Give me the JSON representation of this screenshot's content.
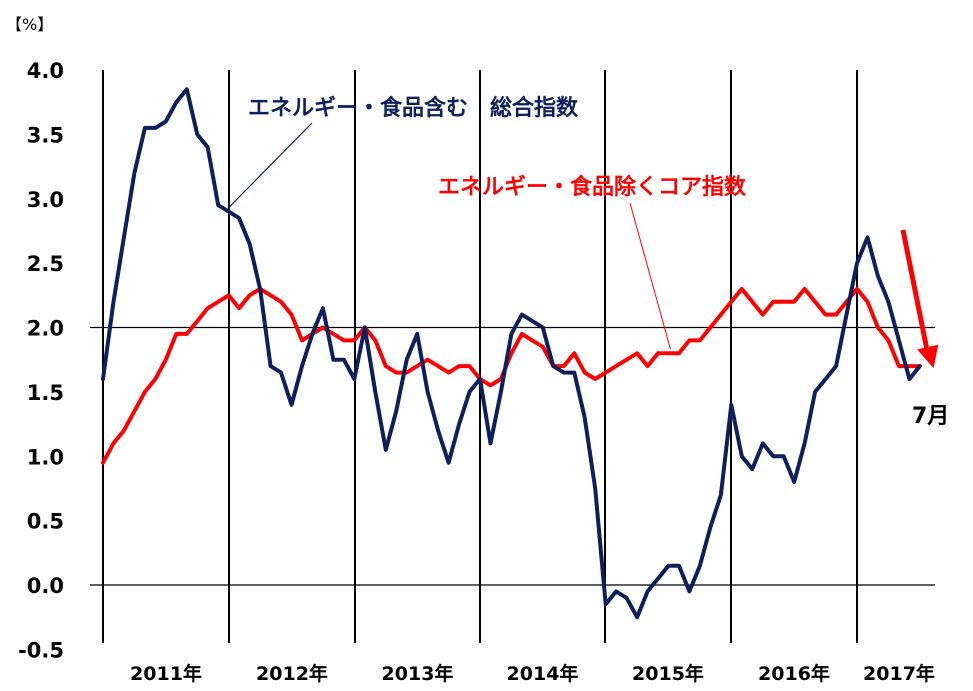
{
  "chart_data": {
    "type": "line",
    "unit_label": "【%】",
    "ylim": [
      -0.5,
      4.0
    ],
    "yticks": [
      "4.0",
      "3.5",
      "3.0",
      "2.5",
      "2.0",
      "1.5",
      "1.0",
      "0.5",
      "0.0",
      "-0.5"
    ],
    "year_labels": [
      "2011年",
      "2012年",
      "2013年",
      "2014年",
      "2015年",
      "2016年",
      "2017年"
    ],
    "grid": "vertical year separators, horizontal reference lines at 0 and 2",
    "series": [
      {
        "name": "エネルギー・食品含む　総合指数",
        "color": "#0d1f5c",
        "start": "2011-01",
        "values": [
          1.6,
          2.2,
          2.7,
          3.2,
          3.55,
          3.55,
          3.6,
          3.75,
          3.85,
          3.5,
          3.4,
          2.95,
          2.9,
          2.85,
          2.65,
          2.3,
          1.7,
          1.65,
          1.4,
          1.7,
          1.95,
          2.15,
          1.75,
          1.75,
          1.6,
          2.0,
          1.5,
          1.05,
          1.35,
          1.75,
          1.95,
          1.5,
          1.2,
          0.95,
          1.25,
          1.5,
          1.6,
          1.1,
          1.5,
          1.95,
          2.1,
          2.05,
          2.0,
          1.7,
          1.65,
          1.65,
          1.3,
          0.75,
          -0.15,
          -0.05,
          -0.1,
          -0.25,
          -0.05,
          0.05,
          0.15,
          0.15,
          -0.05,
          0.15,
          0.45,
          0.7,
          1.4,
          1.0,
          0.9,
          1.1,
          1.0,
          1.0,
          0.8,
          1.1,
          1.5,
          1.6,
          1.7,
          2.1,
          2.5,
          2.7,
          2.4,
          2.2,
          1.9,
          1.6,
          1.7
        ]
      },
      {
        "name": "エネルギー・食品除くコア指数",
        "color": "#ff0000",
        "start": "2011-01",
        "values": [
          0.95,
          1.1,
          1.2,
          1.35,
          1.5,
          1.6,
          1.75,
          1.95,
          1.95,
          2.05,
          2.15,
          2.2,
          2.25,
          2.15,
          2.25,
          2.3,
          2.25,
          2.2,
          2.1,
          1.9,
          1.95,
          2.0,
          1.95,
          1.9,
          1.9,
          2.0,
          1.9,
          1.7,
          1.65,
          1.65,
          1.7,
          1.75,
          1.7,
          1.65,
          1.7,
          1.7,
          1.6,
          1.55,
          1.6,
          1.8,
          1.95,
          1.9,
          1.85,
          1.7,
          1.7,
          1.8,
          1.65,
          1.6,
          1.65,
          1.7,
          1.75,
          1.8,
          1.7,
          1.8,
          1.8,
          1.8,
          1.9,
          1.9,
          2.0,
          2.1,
          2.2,
          2.3,
          2.2,
          2.1,
          2.2,
          2.2,
          2.2,
          2.3,
          2.2,
          2.1,
          2.1,
          2.2,
          2.3,
          2.2,
          2.0,
          1.9,
          1.7,
          1.7,
          1.7
        ]
      }
    ],
    "annotations": [
      {
        "text": "エネルギー・食品含む　総合指数",
        "color": "#0d1f5c",
        "series": 0
      },
      {
        "text": "エネルギー・食品除くコア指数",
        "color": "#ff0000",
        "series": 1
      },
      {
        "text": "7月",
        "color": "#000000"
      }
    ]
  }
}
